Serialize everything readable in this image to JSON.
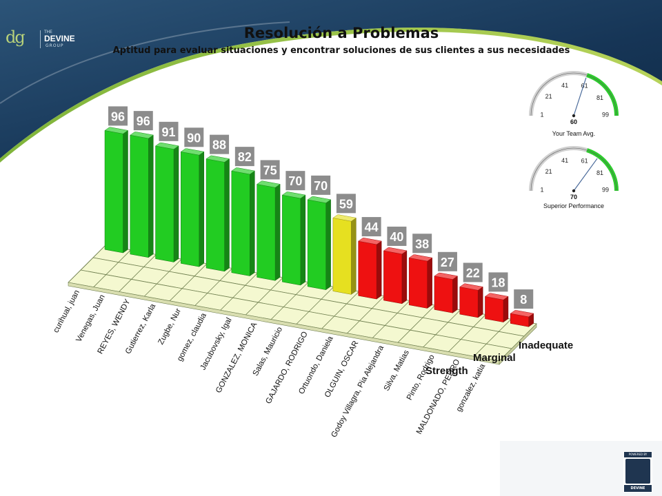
{
  "header": {
    "title": "Resolución a Problemas",
    "subtitle": "Aptitud para evaluar situaciones y encontrar soluciones de sus clientes a sus necesidades"
  },
  "logo": {
    "the": "THE",
    "name": "DEVINE",
    "group": "GROUP",
    "mark": "dg"
  },
  "powered": {
    "top": "POWERED BY",
    "bottom": "DEVINE"
  },
  "colors": {
    "strength": "#22cc22",
    "marginal": "#e6e020",
    "inadequate": "#ee1111",
    "navy": "#1c3a5e",
    "floor": "#f4f8d0"
  },
  "chart_data": {
    "type": "bar",
    "title": "Resolución a Problemas",
    "subtitle": "Aptitud para evaluar situaciones y encontrar soluciones de sus clientes a sus necesidades",
    "categories": [
      "curihual, juan",
      "Venegas, Juan",
      "REYES, WENDY",
      "Gutierrez, Karla",
      "Zugbe, Nur",
      "gomez, claudia",
      "Jacubovsky, Igal",
      "GONZALEZ, MONICA",
      "Salas, Mauricio",
      "GAJARDO, RODRIGO",
      "Ortuondo, Daniela",
      "OLGUIN, OSCAR",
      "Godoy Villagra, Pia Alejandra",
      "Silva, Matias",
      "Pinto, Rodrigo",
      "MALDONADO, PEDRO",
      "gonzalez, katia"
    ],
    "values": [
      96,
      96,
      91,
      90,
      88,
      82,
      75,
      70,
      70,
      59,
      44,
      40,
      38,
      27,
      22,
      18,
      8
    ],
    "labels": [
      "96",
      "96",
      "91",
      "90",
      "88",
      "82",
      "75",
      "70",
      "70",
      "59",
      "44",
      "40",
      "38",
      "27",
      "22",
      "18",
      "8"
    ],
    "series": [
      {
        "name": "Strength",
        "values": [
          96,
          96,
          91,
          90,
          88,
          82,
          75,
          70,
          70,
          null,
          null,
          null,
          null,
          null,
          null,
          null,
          null
        ]
      },
      {
        "name": "Marginal",
        "values": [
          null,
          null,
          null,
          null,
          null,
          null,
          null,
          null,
          null,
          59,
          null,
          null,
          null,
          null,
          null,
          null,
          null
        ]
      },
      {
        "name": "Inadequate",
        "values": [
          null,
          null,
          null,
          null,
          null,
          null,
          null,
          null,
          null,
          null,
          44,
          40,
          38,
          27,
          22,
          18,
          8
        ]
      }
    ],
    "group_labels": [
      "Strength",
      "Marginal",
      "Inadequate"
    ],
    "ylim": [
      0,
      100
    ]
  },
  "gauges": [
    {
      "value": 60,
      "label": "Your Team Avg.",
      "ticks": [
        "1",
        "21",
        "41",
        "61",
        "81",
        "99"
      ]
    },
    {
      "value": 70,
      "label": "Superior Performance",
      "ticks": [
        "1",
        "21",
        "41",
        "61",
        "81",
        "99"
      ]
    }
  ]
}
